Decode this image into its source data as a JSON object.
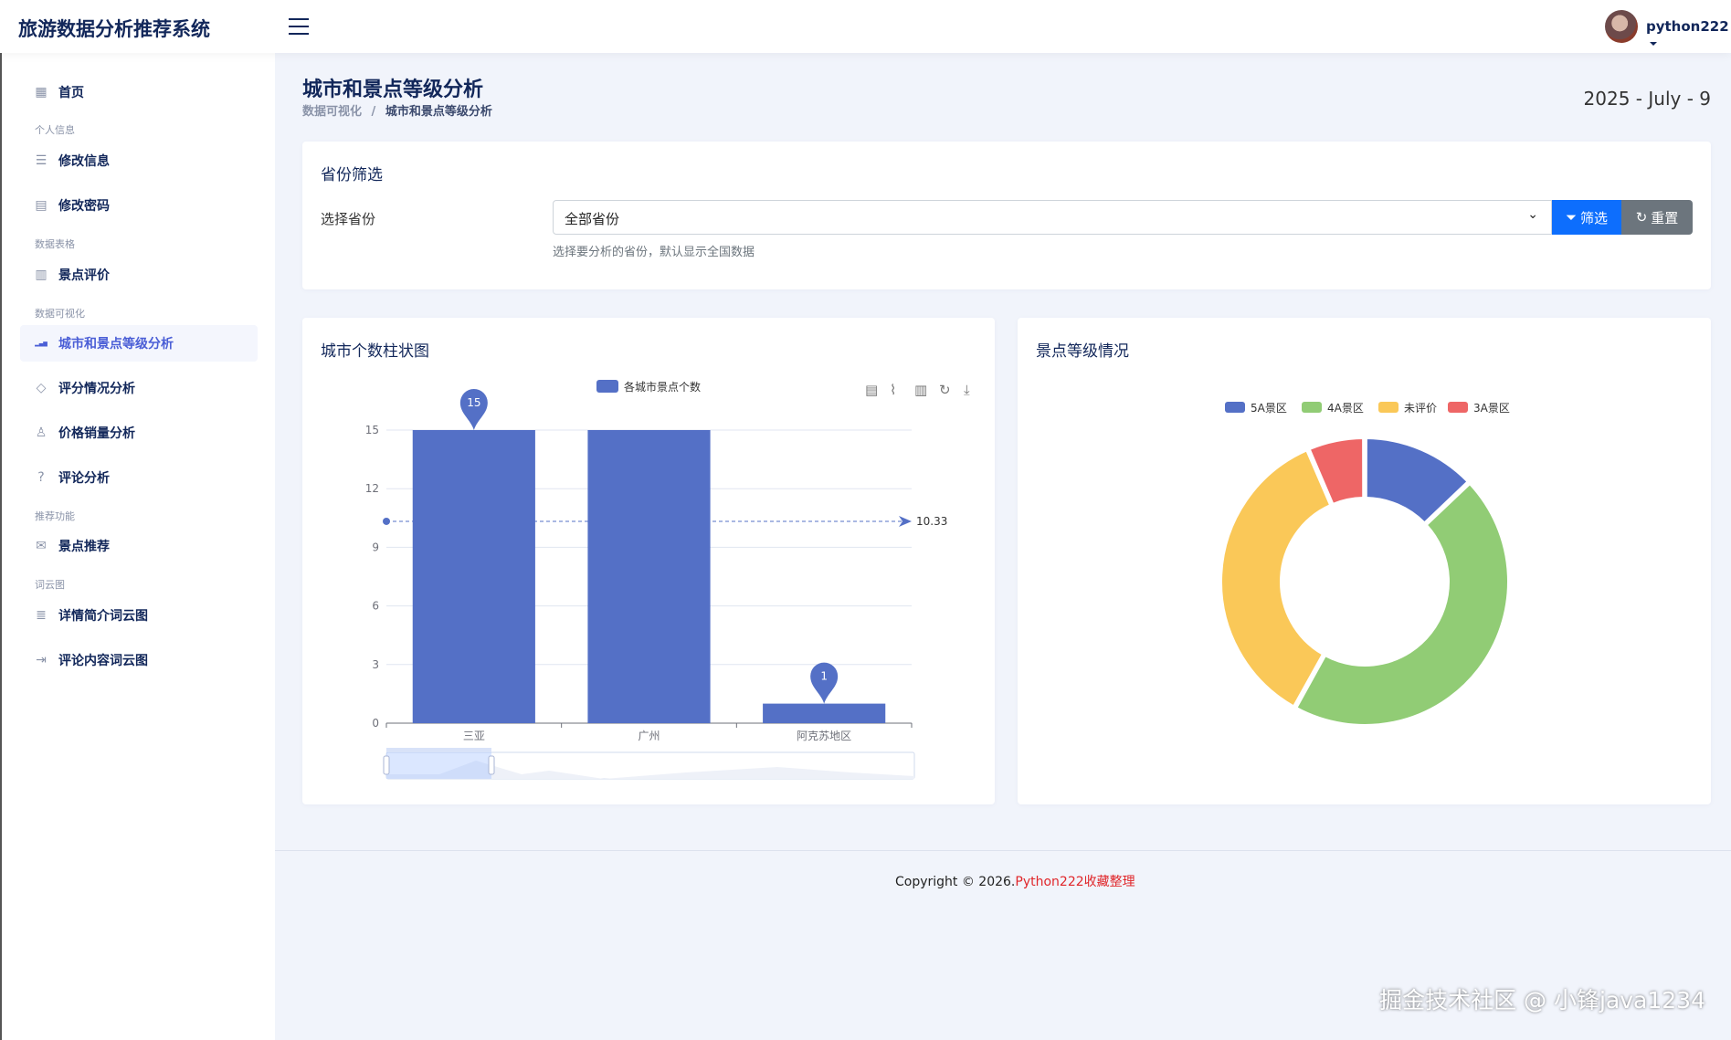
{
  "header": {
    "brand": "旅游数据分析推荐系统",
    "user": "python222"
  },
  "sidebar": {
    "items": [
      {
        "label": "首页",
        "icon": "grid-icon",
        "glyph": "▦"
      },
      {
        "section": "个人信息"
      },
      {
        "label": "修改信息",
        "icon": "form-icon",
        "glyph": "☰"
      },
      {
        "label": "修改密码",
        "icon": "document-icon",
        "glyph": "▤"
      },
      {
        "section": "数据表格"
      },
      {
        "label": "景点评价",
        "icon": "table-icon",
        "glyph": "▥"
      },
      {
        "section": "数据可视化"
      },
      {
        "label": "城市和景点等级分析",
        "icon": "bar-chart-icon",
        "glyph": "▂▄▆",
        "active": true
      },
      {
        "label": "评分情况分析",
        "icon": "diamond-icon",
        "glyph": "◇"
      },
      {
        "label": "价格销量分析",
        "icon": "user-icon",
        "glyph": "♙"
      },
      {
        "label": "评论分析",
        "icon": "question-icon",
        "glyph": "?"
      },
      {
        "section": "推荐功能"
      },
      {
        "label": "景点推荐",
        "icon": "mail-icon",
        "glyph": "✉"
      },
      {
        "section": "词云图"
      },
      {
        "label": "详情简介词云图",
        "icon": "list-icon",
        "glyph": "≣"
      },
      {
        "label": "评论内容词云图",
        "icon": "login-icon",
        "glyph": "⇥"
      }
    ]
  },
  "page": {
    "title": "城市和景点等级分析",
    "breadcrumb": [
      "数据可视化",
      "城市和景点等级分析"
    ],
    "breadcrumb_sep": "/",
    "date": "2025 - July - 9"
  },
  "filter": {
    "title": "省份筛选",
    "label": "选择省份",
    "selected": "全部省份",
    "hint": "选择要分析的省份，默认显示全国数据",
    "filter_button": "筛选",
    "reset_button": "重置"
  },
  "bar_card": {
    "title": "城市个数柱状图"
  },
  "pie_card": {
    "title": "景点等级情况"
  },
  "colors": {
    "primary": "#0d6efd",
    "secondary": "#6c757d",
    "bar": "#5470c6"
  },
  "chart_data": [
    {
      "type": "bar",
      "legend": [
        "各城市景点个数"
      ],
      "categories": [
        "三亚",
        "广州",
        "阿克苏地区"
      ],
      "series": [
        {
          "name": "各城市景点个数",
          "values": [
            15,
            15,
            1
          ]
        }
      ],
      "ylim": [
        0,
        15
      ],
      "yticks": [
        0,
        3,
        6,
        9,
        12,
        15
      ],
      "mark_points": [
        {
          "label": "15",
          "category": "三亚",
          "value": 15
        },
        {
          "label": "1",
          "category": "阿克苏地区",
          "value": 1
        }
      ],
      "mark_line": {
        "type": "average",
        "value": 10.33,
        "label": "10.33"
      },
      "toolbox": [
        "data-view-icon",
        "line-chart-icon",
        "bar-chart-icon",
        "restore-icon",
        "download-icon"
      ],
      "grid": true,
      "datazoom": true,
      "legend_position": "top"
    },
    {
      "type": "pie",
      "donut": true,
      "legend_position": "top-right",
      "slices": [
        {
          "name": "5A景区",
          "value": 4,
          "color": "#5470c6"
        },
        {
          "name": "4A景区",
          "value": 14,
          "color": "#91cc75"
        },
        {
          "name": "未评价",
          "value": 11,
          "color": "#fac858"
        },
        {
          "name": "3A景区",
          "value": 2,
          "color": "#ee6666"
        }
      ]
    }
  ],
  "footer": {
    "copyright": "Copyright © 2026.",
    "link": "Python222收藏整理"
  },
  "watermark": "掘金技术社区 @ 小锋java1234"
}
